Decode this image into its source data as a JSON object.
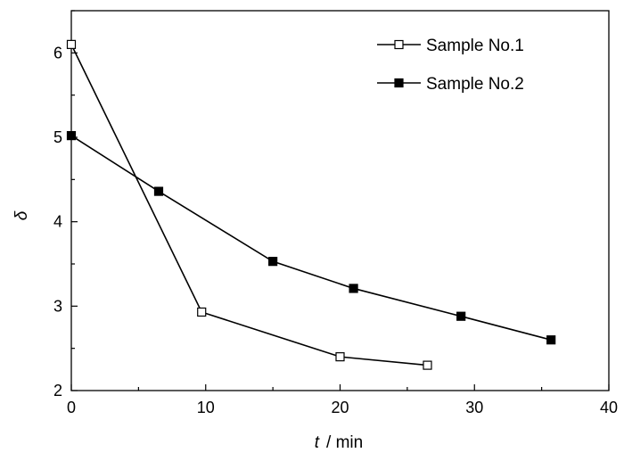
{
  "chart_data": {
    "type": "line",
    "title": "",
    "xlabel": {
      "symbol": "t",
      "unit": "/ min"
    },
    "ylabel": "δ",
    "xlim": [
      0,
      40
    ],
    "ylim": [
      2,
      6.5
    ],
    "xticks": [
      "0",
      "10",
      "20",
      "30",
      "40"
    ],
    "yticks": [
      "2",
      "3",
      "4",
      "5",
      "6"
    ],
    "grid": false,
    "legend_position": "top-right",
    "series": [
      {
        "name": "Sample No.1",
        "marker": "open-square",
        "color": "#000000",
        "x": [
          0,
          9.7,
          20,
          26.5
        ],
        "y": [
          6.1,
          2.93,
          2.4,
          2.3
        ]
      },
      {
        "name": "Sample No.2",
        "marker": "filled-square",
        "color": "#000000",
        "x": [
          0,
          6.5,
          15,
          21,
          29,
          35.7
        ],
        "y": [
          5.02,
          4.36,
          3.53,
          3.21,
          2.88,
          2.6
        ]
      }
    ]
  }
}
